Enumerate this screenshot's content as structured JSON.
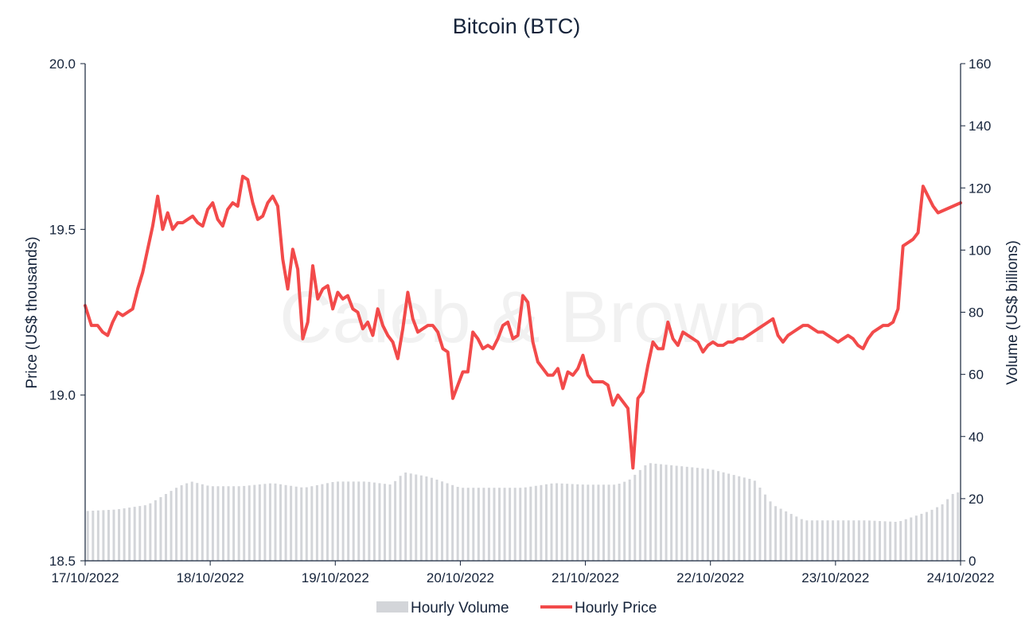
{
  "chart_data": {
    "type": "line",
    "title": "Bitcoin (BTC)",
    "watermark": "Caleb & Brown",
    "ylabel_left": "Price (US$ thousands)",
    "ylabel_right": "Volume (US$ billions)",
    "xlabel": "",
    "ylim_left": [
      18.5,
      20.0
    ],
    "ylim_right": [
      0,
      160
    ],
    "yticks_left": [
      "18.5",
      "19.0",
      "19.5",
      "20.0"
    ],
    "yticks_left_values": [
      18.5,
      19.0,
      19.5,
      20.0
    ],
    "yticks_right": [
      "0",
      "20",
      "40",
      "60",
      "80",
      "100",
      "120",
      "140",
      "160"
    ],
    "yticks_right_values": [
      0,
      20,
      40,
      60,
      80,
      100,
      120,
      140,
      160
    ],
    "x_tick_labels": [
      "17/10/2022",
      "18/10/2022",
      "19/10/2022",
      "20/10/2022",
      "21/10/2022",
      "22/10/2022",
      "23/10/2022",
      "24/10/2022"
    ],
    "x_range_days": [
      0,
      7
    ],
    "grid": false,
    "legend_position": "bottom-center",
    "colors": {
      "volume": "#d3d5d9",
      "price": "#f24a4a",
      "text": "#15233a",
      "watermark": "#f1f1f1"
    },
    "series": [
      {
        "name": "Hourly Price",
        "axis": "left",
        "kind": "line",
        "points": [
          [
            0.0,
            19.27
          ],
          [
            0.05,
            19.21
          ],
          [
            0.1,
            19.21
          ],
          [
            0.14,
            19.19
          ],
          [
            0.18,
            19.18
          ],
          [
            0.22,
            19.22
          ],
          [
            0.26,
            19.25
          ],
          [
            0.3,
            19.24
          ],
          [
            0.34,
            19.25
          ],
          [
            0.38,
            19.26
          ],
          [
            0.42,
            19.32
          ],
          [
            0.46,
            19.37
          ],
          [
            0.5,
            19.44
          ],
          [
            0.54,
            19.51
          ],
          [
            0.58,
            19.6
          ],
          [
            0.62,
            19.5
          ],
          [
            0.66,
            19.55
          ],
          [
            0.7,
            19.5
          ],
          [
            0.74,
            19.52
          ],
          [
            0.78,
            19.52
          ],
          [
            0.82,
            19.53
          ],
          [
            0.86,
            19.54
          ],
          [
            0.9,
            19.52
          ],
          [
            0.94,
            19.51
          ],
          [
            0.98,
            19.56
          ],
          [
            1.02,
            19.58
          ],
          [
            1.06,
            19.53
          ],
          [
            1.1,
            19.51
          ],
          [
            1.14,
            19.56
          ],
          [
            1.18,
            19.58
          ],
          [
            1.22,
            19.57
          ],
          [
            1.26,
            19.66
          ],
          [
            1.3,
            19.65
          ],
          [
            1.34,
            19.58
          ],
          [
            1.38,
            19.53
          ],
          [
            1.42,
            19.54
          ],
          [
            1.46,
            19.58
          ],
          [
            1.5,
            19.6
          ],
          [
            1.54,
            19.57
          ],
          [
            1.58,
            19.41
          ],
          [
            1.62,
            19.32
          ],
          [
            1.66,
            19.44
          ],
          [
            1.7,
            19.38
          ],
          [
            1.74,
            19.17
          ],
          [
            1.78,
            19.22
          ],
          [
            1.82,
            19.39
          ],
          [
            1.86,
            19.29
          ],
          [
            1.9,
            19.32
          ],
          [
            1.94,
            19.33
          ],
          [
            1.98,
            19.26
          ],
          [
            2.02,
            19.31
          ],
          [
            2.06,
            19.29
          ],
          [
            2.1,
            19.3
          ],
          [
            2.14,
            19.26
          ],
          [
            2.18,
            19.25
          ],
          [
            2.22,
            19.2
          ],
          [
            2.26,
            19.22
          ],
          [
            2.3,
            19.18
          ],
          [
            2.34,
            19.26
          ],
          [
            2.38,
            19.21
          ],
          [
            2.42,
            19.18
          ],
          [
            2.46,
            19.16
          ],
          [
            2.5,
            19.11
          ],
          [
            2.54,
            19.2
          ],
          [
            2.58,
            19.31
          ],
          [
            2.62,
            19.23
          ],
          [
            2.66,
            19.19
          ],
          [
            2.7,
            19.2
          ],
          [
            2.74,
            19.21
          ],
          [
            2.78,
            19.21
          ],
          [
            2.82,
            19.19
          ],
          [
            2.86,
            19.14
          ],
          [
            2.9,
            19.13
          ],
          [
            2.94,
            18.99
          ],
          [
            2.98,
            19.03
          ],
          [
            3.02,
            19.07
          ],
          [
            3.06,
            19.07
          ],
          [
            3.1,
            19.19
          ],
          [
            3.14,
            19.17
          ],
          [
            3.18,
            19.14
          ],
          [
            3.22,
            19.15
          ],
          [
            3.26,
            19.14
          ],
          [
            3.3,
            19.17
          ],
          [
            3.34,
            19.21
          ],
          [
            3.38,
            19.22
          ],
          [
            3.42,
            19.17
          ],
          [
            3.46,
            19.18
          ],
          [
            3.5,
            19.3
          ],
          [
            3.54,
            19.28
          ],
          [
            3.58,
            19.16
          ],
          [
            3.62,
            19.1
          ],
          [
            3.66,
            19.08
          ],
          [
            3.7,
            19.06
          ],
          [
            3.74,
            19.06
          ],
          [
            3.78,
            19.08
          ],
          [
            3.82,
            19.02
          ],
          [
            3.86,
            19.07
          ],
          [
            3.9,
            19.06
          ],
          [
            3.94,
            19.08
          ],
          [
            3.98,
            19.12
          ],
          [
            4.02,
            19.06
          ],
          [
            4.06,
            19.04
          ],
          [
            4.1,
            19.04
          ],
          [
            4.14,
            19.04
          ],
          [
            4.18,
            19.03
          ],
          [
            4.22,
            18.97
          ],
          [
            4.26,
            19.0
          ],
          [
            4.3,
            18.98
          ],
          [
            4.34,
            18.96
          ],
          [
            4.38,
            18.78
          ],
          [
            4.42,
            18.99
          ],
          [
            4.46,
            19.01
          ],
          [
            4.5,
            19.09
          ],
          [
            4.54,
            19.16
          ],
          [
            4.58,
            19.14
          ],
          [
            4.62,
            19.14
          ],
          [
            4.66,
            19.22
          ],
          [
            4.7,
            19.17
          ],
          [
            4.74,
            19.15
          ],
          [
            4.78,
            19.19
          ],
          [
            4.82,
            19.18
          ],
          [
            4.86,
            19.17
          ],
          [
            4.9,
            19.16
          ],
          [
            4.94,
            19.13
          ],
          [
            4.98,
            19.15
          ],
          [
            5.02,
            19.16
          ],
          [
            5.06,
            19.15
          ],
          [
            5.1,
            19.15
          ],
          [
            5.14,
            19.16
          ],
          [
            5.18,
            19.16
          ],
          [
            5.22,
            19.17
          ],
          [
            5.26,
            19.17
          ],
          [
            5.3,
            19.18
          ],
          [
            5.34,
            19.19
          ],
          [
            5.38,
            19.2
          ],
          [
            5.42,
            19.21
          ],
          [
            5.46,
            19.22
          ],
          [
            5.5,
            19.23
          ],
          [
            5.54,
            19.18
          ],
          [
            5.58,
            19.16
          ],
          [
            5.62,
            19.18
          ],
          [
            5.66,
            19.19
          ],
          [
            5.7,
            19.2
          ],
          [
            5.74,
            19.21
          ],
          [
            5.78,
            19.21
          ],
          [
            5.82,
            19.2
          ],
          [
            5.86,
            19.19
          ],
          [
            5.9,
            19.19
          ],
          [
            5.94,
            19.18
          ],
          [
            5.98,
            19.17
          ],
          [
            6.02,
            19.16
          ],
          [
            6.06,
            19.17
          ],
          [
            6.1,
            19.18
          ],
          [
            6.14,
            19.17
          ],
          [
            6.18,
            19.15
          ],
          [
            6.22,
            19.14
          ],
          [
            6.26,
            19.17
          ],
          [
            6.3,
            19.19
          ],
          [
            6.34,
            19.2
          ],
          [
            6.38,
            19.21
          ],
          [
            6.42,
            19.21
          ],
          [
            6.46,
            19.22
          ],
          [
            6.5,
            19.26
          ],
          [
            6.54,
            19.45
          ],
          [
            6.58,
            19.46
          ],
          [
            6.62,
            19.47
          ],
          [
            6.66,
            19.49
          ],
          [
            6.7,
            19.63
          ],
          [
            6.74,
            19.6
          ],
          [
            6.78,
            19.57
          ],
          [
            6.82,
            19.55
          ],
          [
            7.0,
            19.58
          ]
        ]
      },
      {
        "name": "Hourly Volume",
        "axis": "right",
        "kind": "bar",
        "points": [
          [
            0.0,
            16
          ],
          [
            0.25,
            16.5
          ],
          [
            0.5,
            18
          ],
          [
            0.75,
            24
          ],
          [
            0.85,
            25.5
          ],
          [
            1.0,
            24
          ],
          [
            1.25,
            24
          ],
          [
            1.5,
            25
          ],
          [
            1.75,
            23.5
          ],
          [
            2.0,
            25.5
          ],
          [
            2.25,
            25.5
          ],
          [
            2.45,
            24.5
          ],
          [
            2.55,
            28.5
          ],
          [
            2.75,
            27
          ],
          [
            3.0,
            23.5
          ],
          [
            3.25,
            23.5
          ],
          [
            3.5,
            23.5
          ],
          [
            3.75,
            25
          ],
          [
            4.0,
            24.5
          ],
          [
            4.25,
            24.5
          ],
          [
            4.35,
            26
          ],
          [
            4.5,
            31.5
          ],
          [
            4.75,
            30.5
          ],
          [
            5.0,
            29.5
          ],
          [
            5.25,
            27
          ],
          [
            5.35,
            26
          ],
          [
            5.5,
            18
          ],
          [
            5.75,
            13
          ],
          [
            6.0,
            13
          ],
          [
            6.25,
            13
          ],
          [
            6.5,
            12.5
          ],
          [
            6.75,
            16
          ],
          [
            6.85,
            18
          ],
          [
            6.95,
            22
          ]
        ]
      }
    ]
  }
}
